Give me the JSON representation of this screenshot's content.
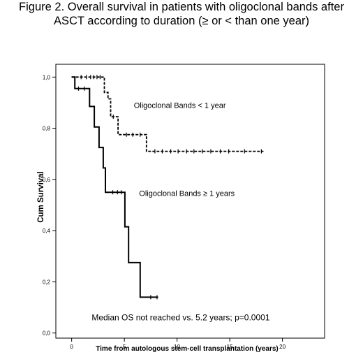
{
  "figure": {
    "title_line1": "Figure 2.  Overall survival in patients with oligoclonal bands after",
    "title_line2": "ASCT according to duration (≥ or < than one year)"
  },
  "chart_data": {
    "type": "line",
    "subtype": "kaplan-meier step",
    "title": "Figure 2.  Overall survival in patients with oligoclonal bands after ASCT according to duration (≥ or < than one year)",
    "xlabel": "Time from autologous stem-cell transplantation (years)",
    "ylabel": "Cum Survival",
    "xlim": [
      -1.5,
      24
    ],
    "ylim": [
      -0.02,
      1.05
    ],
    "x_ticks": [
      0,
      5,
      10,
      15,
      20
    ],
    "x_tick_labels": [
      "0",
      "5",
      "10",
      "15",
      "20"
    ],
    "y_ticks": [
      0,
      0.2,
      0.4,
      0.6,
      0.8,
      1.0
    ],
    "y_tick_labels": [
      "0,0",
      "0,2",
      "0,4",
      "0,6",
      "0,8",
      "1,0"
    ],
    "grid": false,
    "annotations": [
      {
        "text": "Oligoclonal Bands < 1 year",
        "x": 5.9,
        "y": 0.88
      },
      {
        "text": "Oligoclonal Bands ≥ 1 years",
        "x": 6.4,
        "y": 0.535
      },
      {
        "text": "Median OS not reached vs. 5.2 years; p=0.0001",
        "x": 1.9,
        "y": 0.05
      }
    ],
    "series": [
      {
        "style": "dashed",
        "steps": [
          [
            0,
            1.0
          ],
          [
            3.1,
            1.0
          ],
          [
            3.1,
            0.94
          ],
          [
            3.45,
            0.94
          ],
          [
            3.45,
            0.915
          ],
          [
            3.7,
            0.915
          ],
          [
            3.7,
            0.845
          ],
          [
            4.4,
            0.845
          ],
          [
            4.4,
            0.775
          ],
          [
            7.1,
            0.775
          ],
          [
            7.1,
            0.71
          ],
          [
            18.2,
            0.71
          ]
        ],
        "censored": [
          [
            0.9,
            1.0
          ],
          [
            1.4,
            1.0
          ],
          [
            1.8,
            1.0
          ],
          [
            2.1,
            1.0
          ],
          [
            2.4,
            1.0
          ],
          [
            2.7,
            1.0
          ],
          [
            3.95,
            0.845
          ],
          [
            5.2,
            0.775
          ],
          [
            5.8,
            0.775
          ],
          [
            6.5,
            0.775
          ],
          [
            7.9,
            0.71
          ],
          [
            8.6,
            0.71
          ],
          [
            9.4,
            0.71
          ],
          [
            10.1,
            0.71
          ],
          [
            10.9,
            0.71
          ],
          [
            11.6,
            0.71
          ],
          [
            12.4,
            0.71
          ],
          [
            13.2,
            0.71
          ],
          [
            14.1,
            0.71
          ],
          [
            14.9,
            0.71
          ],
          [
            16.4,
            0.71
          ],
          [
            18.0,
            0.71
          ]
        ]
      },
      {
        "style": "solid",
        "steps": [
          [
            0,
            1.0
          ],
          [
            0.3,
            1.0
          ],
          [
            0.3,
            0.955
          ],
          [
            1.7,
            0.955
          ],
          [
            1.7,
            0.885
          ],
          [
            2.15,
            0.885
          ],
          [
            2.15,
            0.805
          ],
          [
            2.6,
            0.805
          ],
          [
            2.6,
            0.725
          ],
          [
            3.0,
            0.725
          ],
          [
            3.0,
            0.645
          ],
          [
            3.2,
            0.645
          ],
          [
            3.2,
            0.55
          ],
          [
            5.05,
            0.55
          ],
          [
            5.05,
            0.415
          ],
          [
            5.4,
            0.415
          ],
          [
            5.4,
            0.275
          ],
          [
            6.5,
            0.275
          ],
          [
            6.5,
            0.14
          ],
          [
            8.2,
            0.14
          ]
        ],
        "censored": [
          [
            0.65,
            0.955
          ],
          [
            1.2,
            0.955
          ],
          [
            3.9,
            0.55
          ],
          [
            4.35,
            0.55
          ],
          [
            4.7,
            0.55
          ],
          [
            7.5,
            0.14
          ],
          [
            8.1,
            0.14
          ]
        ]
      }
    ]
  }
}
